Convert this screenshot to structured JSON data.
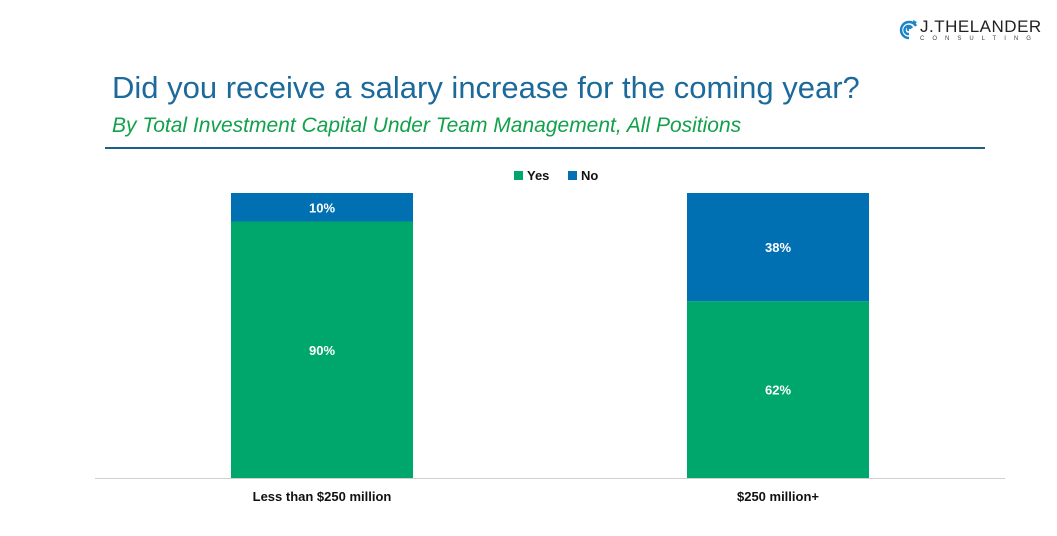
{
  "logo": {
    "main": "J.THELANDER",
    "sub": "CONSULTING"
  },
  "title": "Did you receive a salary increase for the coming year?",
  "subtitle": "By Total Investment Capital Under Team Management, All Positions",
  "colors": {
    "yes": "#00a76d",
    "no": "#0070b2"
  },
  "chart_data": {
    "type": "bar",
    "stacked": true,
    "percent": true,
    "categories": [
      "Less than $250 million",
      "$250 million+"
    ],
    "series": [
      {
        "name": "Yes",
        "values": [
          90,
          62
        ],
        "labels": [
          "90%",
          "62%"
        ]
      },
      {
        "name": "No",
        "values": [
          10,
          38
        ],
        "labels": [
          "10%",
          "38%"
        ]
      }
    ],
    "ylim": [
      0,
      100
    ],
    "legend": "top-center",
    "grid": false
  }
}
